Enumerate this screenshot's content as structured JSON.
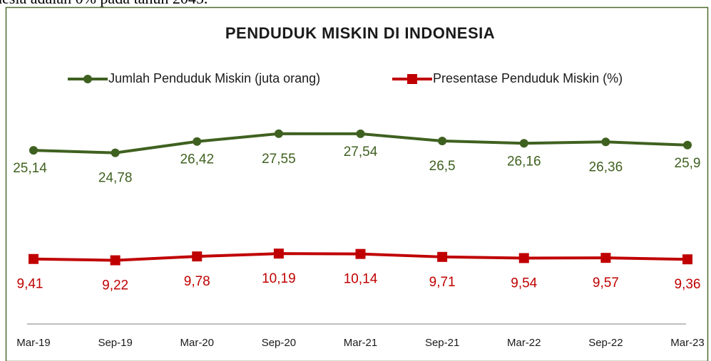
{
  "caption": "nesia adalah 0% pada tahun 2045.",
  "chart_data": {
    "type": "line",
    "title": "PENDUDUK MISKIN DI INDONESIA",
    "categories": [
      "Mar-19",
      "Sep-19",
      "Mar-20",
      "Sep-20",
      "Mar-21",
      "Sep-21",
      "Mar-22",
      "Sep-22",
      "Mar-23"
    ],
    "ylim": [
      0,
      30
    ],
    "series": [
      {
        "name": "Jumlah Penduduk Miskin (juta orang)",
        "color": "#3f6120",
        "marker": "circle",
        "values": [
          25.14,
          24.78,
          26.42,
          27.55,
          27.54,
          26.5,
          26.16,
          26.36,
          25.9
        ],
        "value_labels": [
          "25,14",
          "24,78",
          "26,42",
          "27,55",
          "27,54",
          "26,5",
          "26,16",
          "26,36",
          "25,9"
        ]
      },
      {
        "name": "Presentase Penduduk Miskin (%)",
        "color": "#c00000",
        "marker": "square",
        "values": [
          9.41,
          9.22,
          9.78,
          10.19,
          10.14,
          9.71,
          9.54,
          9.57,
          9.36
        ],
        "value_labels": [
          "9,41",
          "9,22",
          "9,78",
          "10,19",
          "10,14",
          "9,71",
          "9,54",
          "9,57",
          "9,36"
        ]
      }
    ]
  }
}
